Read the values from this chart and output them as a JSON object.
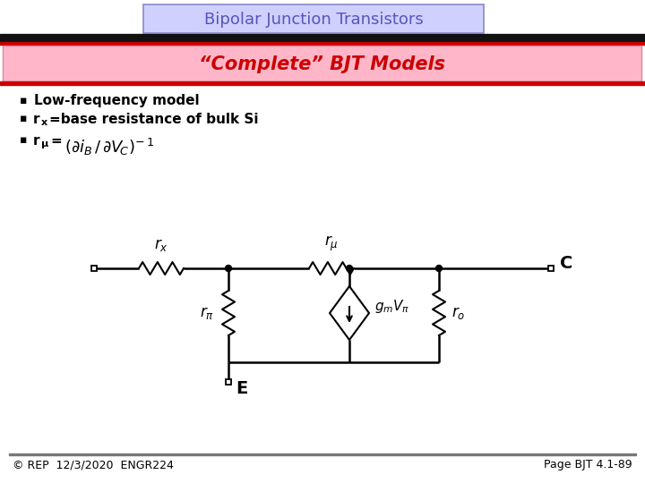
{
  "title": "Bipolar Junction Transistors",
  "subtitle": "“Complete” BJT Models",
  "title_bg": "#d0d0ff",
  "subtitle_bg": "#ffb6c8",
  "title_color": "#5555bb",
  "subtitle_color": "#cc0000",
  "bullet1": "Low-frequency model",
  "bullet2_pre": "r",
  "bullet2_sub": "x",
  "bullet2_post": "=base resistance of bulk Si",
  "bullet3_pre": "r",
  "bullet3_sub": "μ",
  "bullet3_eq": "=",
  "footer_left": "© REP  12/3/2020  ENGR224",
  "footer_right": "Page BJT 4.1-89",
  "bg_color": "#ffffff",
  "text_color": "#000000",
  "bar_black": "#111111",
  "bar_red": "#cc0000"
}
